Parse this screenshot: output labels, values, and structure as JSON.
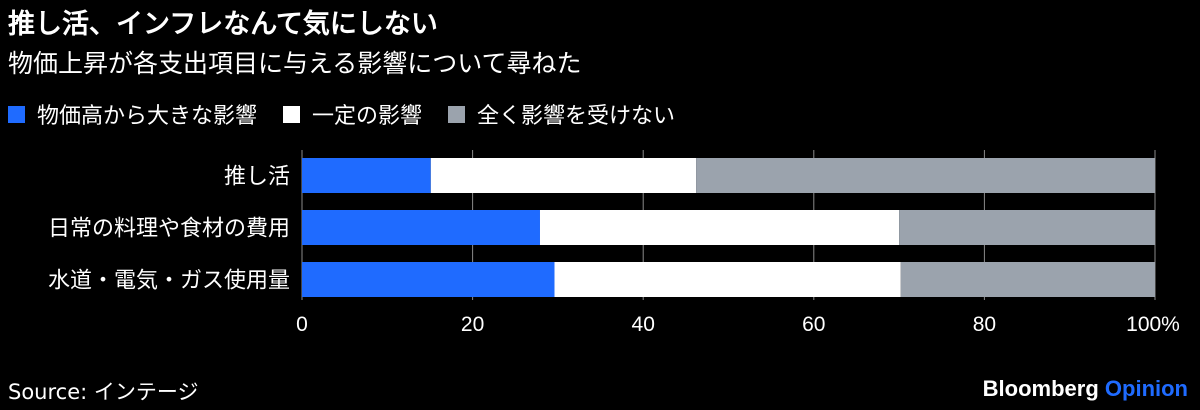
{
  "header": {
    "title": "推し活、インフレなんて気にしない",
    "subtitle": "物価上昇が各支出項目に与える影響について尋ねた"
  },
  "footer": {
    "source": "Source: インテージ",
    "brand_name": "Bloomberg",
    "brand_suffix": "Opinion",
    "brand_suffix_color": "#1F6BFF"
  },
  "chart_data": {
    "type": "bar",
    "orientation": "horizontal",
    "stacked": true,
    "categories": [
      "推し活",
      "日常の料理や食材の費用",
      "水道・電気・ガス使用量"
    ],
    "series": [
      {
        "name": "物価高から大きな影響",
        "color": "#1F6BFF",
        "values": [
          15.1,
          27.9,
          29.6
        ]
      },
      {
        "name": "一定の影響",
        "color": "#FFFFFF",
        "values": [
          31.1,
          42.1,
          40.6
        ]
      },
      {
        "name": "全く影響を受けない",
        "color": "#9BA3AD",
        "values": [
          53.8,
          30.0,
          29.8
        ]
      }
    ],
    "x_ticks": [
      "0",
      "20",
      "40",
      "60",
      "80",
      "100%"
    ],
    "xlim": [
      0,
      100
    ],
    "grid": true,
    "legend_position": "top-left"
  }
}
